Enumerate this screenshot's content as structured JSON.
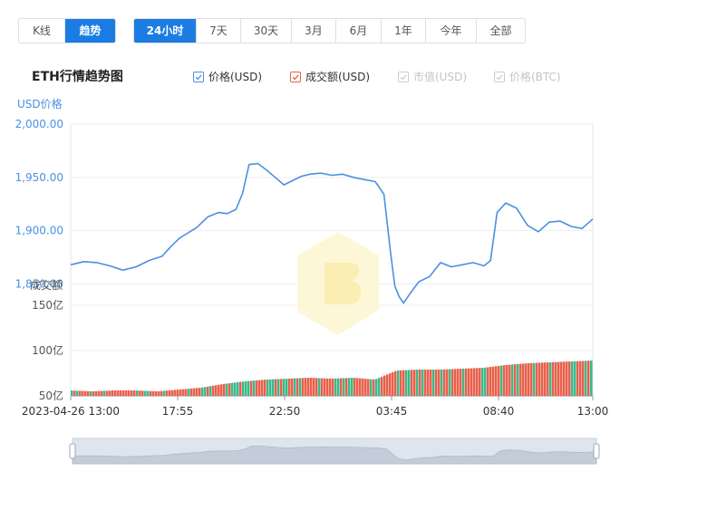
{
  "toolbar": {
    "mode_tabs": [
      {
        "label": "K线",
        "active": false
      },
      {
        "label": "趋势",
        "active": true
      }
    ],
    "range_tabs": [
      {
        "label": "24小时",
        "active": true
      },
      {
        "label": "7天",
        "active": false
      },
      {
        "label": "30天",
        "active": false
      },
      {
        "label": "3月",
        "active": false
      },
      {
        "label": "6月",
        "active": false
      },
      {
        "label": "1年",
        "active": false
      },
      {
        "label": "今年",
        "active": false
      },
      {
        "label": "全部",
        "active": false
      }
    ]
  },
  "legend": {
    "items": [
      {
        "label": "价格(USD)",
        "checked": true,
        "color": "#4a90e2"
      },
      {
        "label": "成交额(USD)",
        "checked": true,
        "color": "#e8604c"
      },
      {
        "label": "市值(USD)",
        "checked": false,
        "color": "#cccccc"
      },
      {
        "label": "价格(BTC)",
        "checked": false,
        "color": "#cccccc"
      }
    ]
  },
  "colors": {
    "accent": "#1b7de3",
    "price_line": "#4a90e2",
    "volume_up": "#e8604c",
    "volume_down": "#3cb88a",
    "axis_text": "#4a90e2"
  },
  "chart_data": {
    "type": "line",
    "title": "ETH行情趋势图",
    "price_axis_label": "USD价格",
    "volume_axis_label": "成交额",
    "x_tick_labels": [
      "2023-04-26 13:00",
      "17:55",
      "22:50",
      "03:45",
      "08:40",
      "13:00"
    ],
    "price_ticks": [
      "2,000.00",
      "1,950.00",
      "1,900.00",
      "1,850.00"
    ],
    "volume_ticks": [
      "150亿",
      "100亿",
      "50亿"
    ],
    "price_ylim": [
      1830,
      2000
    ],
    "volume_ylim": [
      50,
      150
    ],
    "volume_unit": "亿",
    "price_series": {
      "name": "价格(USD)",
      "x_hours": [
        0,
        0.6,
        1.2,
        1.8,
        2.4,
        3.0,
        3.6,
        4.2,
        4.6,
        5.0,
        5.4,
        5.8,
        6.3,
        6.8,
        7.2,
        7.6,
        7.9,
        8.2,
        8.6,
        9.0,
        9.4,
        9.8,
        10.2,
        10.6,
        11.0,
        11.5,
        12.0,
        12.5,
        13.0,
        13.5,
        14.0,
        14.4,
        14.7,
        14.9,
        15.1,
        15.3,
        15.6,
        16.0,
        16.5,
        17.0,
        17.5,
        18.0,
        18.5,
        19.0,
        19.3,
        19.6,
        20.0,
        20.5,
        21.0,
        21.5,
        22.0,
        22.5,
        23.0,
        23.5,
        24.0
      ],
      "values": [
        1868,
        1871,
        1870,
        1867,
        1863,
        1866,
        1872,
        1876,
        1885,
        1893,
        1898,
        1903,
        1913,
        1917,
        1916,
        1920,
        1935,
        1962,
        1963,
        1957,
        1950,
        1943,
        1947,
        1951,
        1953,
        1954,
        1952,
        1953,
        1950,
        1948,
        1946,
        1934,
        1880,
        1848,
        1838,
        1832,
        1841,
        1852,
        1857,
        1870,
        1866,
        1868,
        1870,
        1867,
        1872,
        1917,
        1926,
        1921,
        1905,
        1899,
        1908,
        1909,
        1904,
        1902,
        1911
      ]
    },
    "volume_series": {
      "name": "成交额(USD)",
      "x_hours": [
        0,
        1,
        2,
        3,
        4,
        5,
        6,
        7,
        8,
        9,
        10,
        11,
        12,
        13,
        14,
        14.4,
        15,
        16,
        17,
        18,
        19,
        20,
        21,
        22,
        23,
        24
      ],
      "values": [
        56,
        55,
        56,
        56,
        55,
        57,
        59,
        63,
        66,
        68,
        69,
        70,
        69,
        70,
        68,
        72,
        78,
        79,
        79,
        80,
        81,
        84,
        86,
        87,
        88,
        89
      ]
    }
  }
}
